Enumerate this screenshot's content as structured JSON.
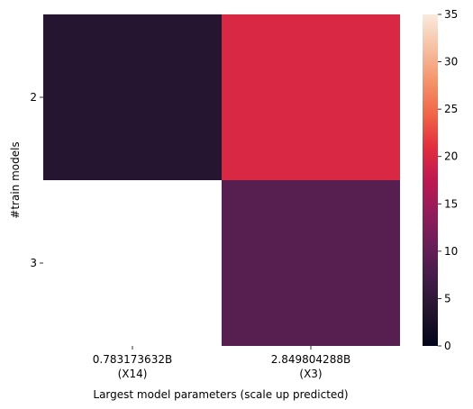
{
  "chart_data": {
    "type": "heatmap",
    "title": "",
    "xlabel": "Largest model parameters (scale up predicted)",
    "ylabel": "#train models",
    "x_categories": [
      {
        "line1": "0.783173632B",
        "line2": "(X14)"
      },
      {
        "line1": "2.849804288B",
        "line2": "(X3)"
      }
    ],
    "y_categories": [
      "2",
      "3"
    ],
    "values": [
      [
        4,
        20
      ],
      [
        null,
        9
      ]
    ],
    "colorbar": {
      "min": 0,
      "max": 35,
      "ticks": [
        "0",
        "5",
        "10",
        "15",
        "20",
        "25",
        "30",
        "35"
      ],
      "colormap": "rocket"
    },
    "grid": false,
    "legend": "colorbar-right"
  }
}
